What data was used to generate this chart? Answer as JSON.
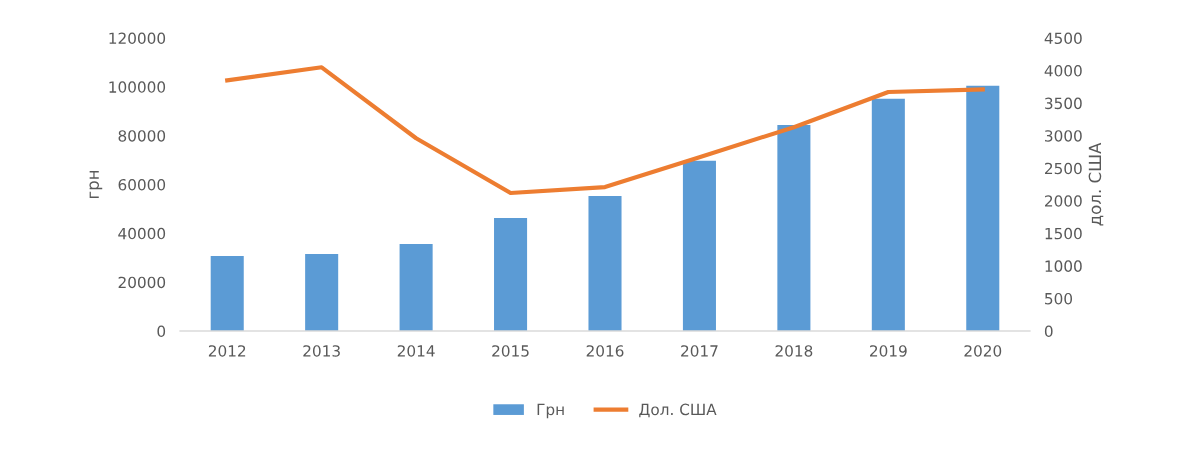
{
  "chart_data": {
    "type": "bar",
    "categories": [
      "2012",
      "2013",
      "2014",
      "2015",
      "2016",
      "2017",
      "2018",
      "2019",
      "2020"
    ],
    "ylabel": "грн",
    "y2label": "дол. США",
    "series": [
      {
        "name": "Грн",
        "color": "#5b9bd5",
        "values": [
          30700,
          31500,
          35600,
          46300,
          55300,
          69700,
          84400,
          95100,
          100400
        ]
      },
      {
        "name": "Дол. США",
        "type": "line",
        "axis": "y2",
        "color": "#ed7d31",
        "values": [
          3850,
          4050,
          2960,
          2120,
          2210,
          2670,
          3130,
          3670,
          3710
        ]
      }
    ],
    "ylim": [
      0,
      120000
    ],
    "yticks": [
      0,
      20000,
      40000,
      60000,
      80000,
      100000,
      120000
    ],
    "y2lim": [
      0,
      4500
    ],
    "y2ticks": [
      0,
      500,
      1000,
      1500,
      2000,
      2500,
      3000,
      3500,
      4000,
      4500
    ],
    "grid": false,
    "legend": "bottom",
    "marker": "none",
    "line_style": "solid"
  }
}
